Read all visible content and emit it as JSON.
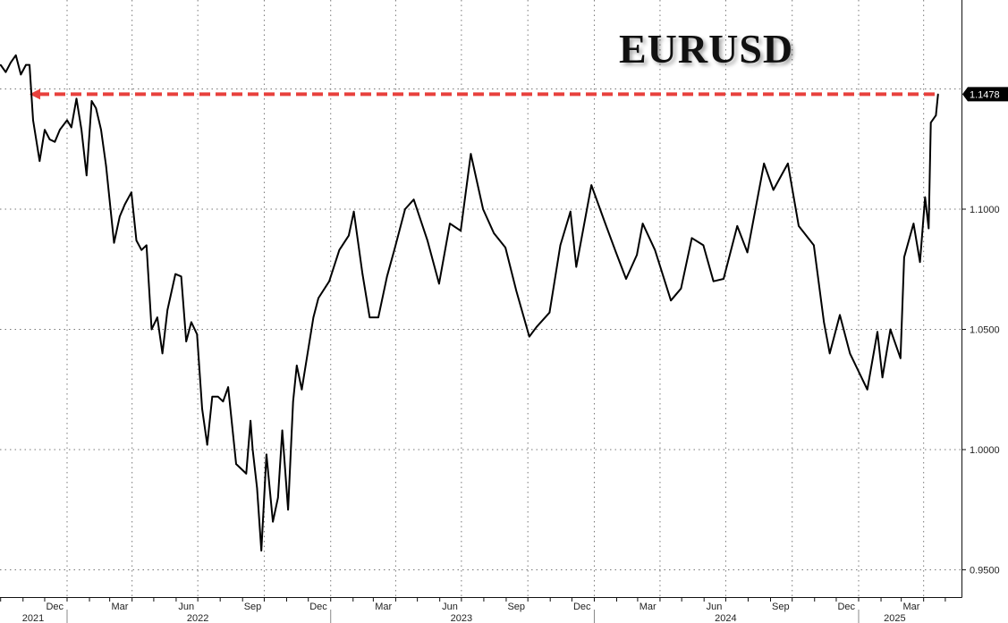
{
  "chart_data": {
    "type": "line",
    "title": "EURUSD",
    "xlabel": "",
    "ylabel": "",
    "ylim": [
      0.9385,
      1.187
    ],
    "xlim": [
      "2021-10-01",
      "2025-05-15"
    ],
    "grid": true,
    "y_axis_side": "right",
    "y_ticks": [
      "1.1000",
      "1.0500",
      "1.0000",
      "0.9500"
    ],
    "y_tick_values": [
      1.1,
      1.05,
      1.0,
      0.95
    ],
    "x_month_ticks": [
      {
        "label": "Dec",
        "date": "2021-12-15"
      },
      {
        "label": "Mar",
        "date": "2022-03-15"
      },
      {
        "label": "Jun",
        "date": "2022-06-15"
      },
      {
        "label": "Sep",
        "date": "2022-09-15"
      },
      {
        "label": "Dec",
        "date": "2022-12-15"
      },
      {
        "label": "Mar",
        "date": "2023-03-15"
      },
      {
        "label": "Jun",
        "date": "2023-06-15"
      },
      {
        "label": "Sep",
        "date": "2023-09-15"
      },
      {
        "label": "Dec",
        "date": "2023-12-15"
      },
      {
        "label": "Mar",
        "date": "2024-03-15"
      },
      {
        "label": "Jun",
        "date": "2024-06-15"
      },
      {
        "label": "Sep",
        "date": "2024-09-15"
      },
      {
        "label": "Dec",
        "date": "2024-12-15"
      },
      {
        "label": "Mar",
        "date": "2025-03-15"
      }
    ],
    "x_year_labels": [
      {
        "label": "2021",
        "date": "2021-11-15"
      },
      {
        "label": "2022",
        "date": "2022-07-01"
      },
      {
        "label": "2023",
        "date": "2023-07-01"
      },
      {
        "label": "2024",
        "date": "2024-07-01"
      },
      {
        "label": "2025",
        "date": "2025-02-20"
      }
    ],
    "last_value_label": "1.1478",
    "reference_line": {
      "value": 1.1478,
      "style": "dashed-arrow",
      "color": "#e8403c",
      "from": "2025-04-21",
      "to": "2021-11-10"
    },
    "line_color": "#000000",
    "series": [
      {
        "x": [
          "2021-10-01",
          "2021-10-08",
          "2021-10-15",
          "2021-10-22",
          "2021-10-29",
          "2021-11-05",
          "2021-11-10",
          "2021-11-15",
          "2021-11-24",
          "2021-12-01",
          "2021-12-08",
          "2021-12-15",
          "2021-12-22",
          "2022-01-01",
          "2022-01-07",
          "2022-01-14",
          "2022-01-21",
          "2022-01-28",
          "2022-02-04",
          "2022-02-10",
          "2022-02-17",
          "2022-02-24",
          "2022-03-07",
          "2022-03-15",
          "2022-03-22",
          "2022-03-31",
          "2022-04-07",
          "2022-04-14",
          "2022-04-21",
          "2022-04-28",
          "2022-05-06",
          "2022-05-13",
          "2022-05-20",
          "2022-05-31",
          "2022-06-08",
          "2022-06-15",
          "2022-06-22",
          "2022-06-30",
          "2022-07-07",
          "2022-07-14",
          "2022-07-21",
          "2022-07-29",
          "2022-08-05",
          "2022-08-12",
          "2022-08-23",
          "2022-09-06",
          "2022-09-12",
          "2022-09-15",
          "2022-09-21",
          "2022-09-27",
          "2022-10-04",
          "2022-10-13",
          "2022-10-20",
          "2022-10-26",
          "2022-11-03",
          "2022-11-10",
          "2022-11-15",
          "2022-11-22",
          "2022-11-30",
          "2022-12-08",
          "2022-12-15",
          "2022-12-30",
          "2023-01-13",
          "2023-01-26",
          "2023-02-02",
          "2023-02-14",
          "2023-02-24",
          "2023-03-08",
          "2023-03-20",
          "2023-03-31",
          "2023-04-14",
          "2023-04-26",
          "2023-05-15",
          "2023-05-31",
          "2023-06-15",
          "2023-06-30",
          "2023-07-14",
          "2023-07-31",
          "2023-08-15",
          "2023-08-31",
          "2023-09-15",
          "2023-10-03",
          "2023-10-13",
          "2023-10-31",
          "2023-11-15",
          "2023-11-29",
          "2023-12-07",
          "2023-12-28",
          "2024-01-15",
          "2024-01-31",
          "2024-02-14",
          "2024-02-29",
          "2024-03-08",
          "2024-03-25",
          "2024-04-16",
          "2024-04-30",
          "2024-05-15",
          "2024-05-31",
          "2024-06-14",
          "2024-06-28",
          "2024-07-17",
          "2024-07-31",
          "2024-08-23",
          "2024-09-05",
          "2024-09-25",
          "2024-10-10",
          "2024-10-31",
          "2024-11-14",
          "2024-11-22",
          "2024-12-06",
          "2024-12-20",
          "2025-01-13",
          "2025-01-27",
          "2025-02-03",
          "2025-02-14",
          "2025-02-28",
          "2025-03-05",
          "2025-03-18",
          "2025-03-27",
          "2025-04-03",
          "2025-04-08",
          "2025-04-11",
          "2025-04-18",
          "2025-04-21"
        ],
        "y": [
          1.16,
          1.157,
          1.161,
          1.164,
          1.156,
          1.16,
          1.16,
          1.137,
          1.12,
          1.133,
          1.129,
          1.128,
          1.133,
          1.137,
          1.134,
          1.146,
          1.133,
          1.114,
          1.145,
          1.142,
          1.133,
          1.118,
          1.086,
          1.097,
          1.102,
          1.107,
          1.087,
          1.083,
          1.085,
          1.05,
          1.055,
          1.04,
          1.058,
          1.073,
          1.072,
          1.045,
          1.053,
          1.048,
          1.017,
          1.002,
          1.022,
          1.022,
          1.02,
          1.026,
          0.994,
          0.99,
          1.012,
          1.0,
          0.984,
          0.958,
          0.998,
          0.97,
          0.98,
          1.008,
          0.975,
          1.02,
          1.035,
          1.025,
          1.04,
          1.055,
          1.063,
          1.07,
          1.083,
          1.089,
          1.099,
          1.073,
          1.055,
          1.055,
          1.072,
          1.084,
          1.1,
          1.104,
          1.087,
          1.069,
          1.094,
          1.091,
          1.123,
          1.1,
          1.09,
          1.084,
          1.066,
          1.047,
          1.051,
          1.057,
          1.085,
          1.099,
          1.076,
          1.11,
          1.095,
          1.082,
          1.071,
          1.081,
          1.094,
          1.083,
          1.062,
          1.067,
          1.088,
          1.085,
          1.07,
          1.071,
          1.093,
          1.082,
          1.119,
          1.108,
          1.119,
          1.093,
          1.085,
          1.053,
          1.04,
          1.056,
          1.04,
          1.025,
          1.049,
          1.03,
          1.05,
          1.038,
          1.08,
          1.094,
          1.078,
          1.105,
          1.092,
          1.136,
          1.139,
          1.1478
        ]
      }
    ]
  }
}
